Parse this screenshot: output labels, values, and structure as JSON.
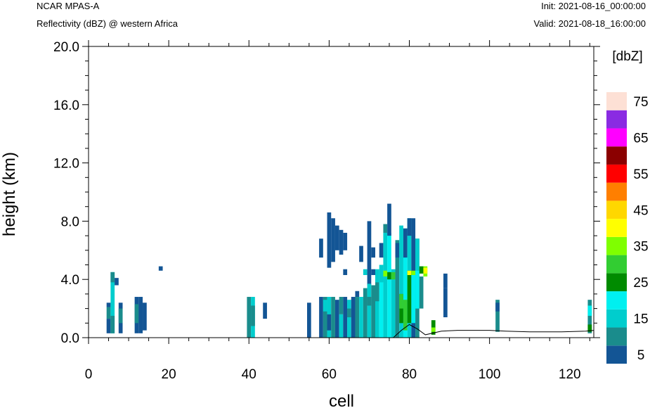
{
  "header": {
    "model": "NCAR MPAS-A",
    "field": "Reflectivity (dBZ) @ western Africa",
    "init": "Init: 2021-08-16_00:00:00",
    "valid": "Valid: 2021-08-18_16:00:00"
  },
  "chart_data": {
    "type": "heatmap",
    "xlabel": "cell",
    "ylabel": "height (km)",
    "xlim": [
      0,
      126
    ],
    "ylim": [
      0,
      20
    ],
    "x_ticks": [
      "0",
      "20",
      "40",
      "60",
      "80",
      "100",
      "120"
    ],
    "y_ticks": [
      "0.0",
      "4.0",
      "8.0",
      "12.0",
      "16.0",
      "20.0"
    ],
    "colorbar": {
      "title": "[dbZ]",
      "labels": [
        "5",
        "15",
        "25",
        "35",
        "45",
        "55",
        "65",
        "75"
      ],
      "colors": [
        "#135595",
        "#1a8c8c",
        "#00cdcd",
        "#00f0f0",
        "#008b00",
        "#32cd32",
        "#7fff00",
        "#ffff00",
        "#ffd700",
        "#ff7f00",
        "#ff0000",
        "#8b0000",
        "#ff00ff",
        "#8a2be2",
        "#fde0d5"
      ]
    },
    "cells": [
      [
        5,
        0.3,
        1.3,
        0
      ],
      [
        5,
        1.3,
        2.1,
        1
      ],
      [
        5,
        2.1,
        2.4,
        0
      ],
      [
        6,
        0.3,
        4.5,
        2
      ],
      [
        6,
        3.8,
        4.5,
        1
      ],
      [
        6,
        0.3,
        1.5,
        1
      ],
      [
        7,
        3.6,
        4.1,
        0
      ],
      [
        8,
        0.3,
        2.4,
        0
      ],
      [
        8,
        1.0,
        2.0,
        1
      ],
      [
        12,
        0.3,
        2.8,
        0
      ],
      [
        12,
        1.0,
        2.3,
        1
      ],
      [
        13,
        0.3,
        2.8,
        0
      ],
      [
        14,
        0.5,
        2.4,
        0
      ],
      [
        18,
        4.6,
        4.9,
        0
      ],
      [
        40,
        0.0,
        2.8,
        1
      ],
      [
        41,
        0.0,
        2.8,
        2
      ],
      [
        41,
        0.8,
        2.2,
        1
      ],
      [
        44,
        1.3,
        2.4,
        0
      ],
      [
        55,
        0.0,
        2.4,
        0
      ],
      [
        58,
        0.0,
        2.8,
        0
      ],
      [
        59,
        0.0,
        2.8,
        1
      ],
      [
        59,
        1.8,
        2.6,
        2
      ],
      [
        58,
        5.5,
        6.8,
        0
      ],
      [
        60,
        4.8,
        8.6,
        0
      ],
      [
        60,
        0.0,
        2.8,
        2
      ],
      [
        60,
        0.5,
        1.6,
        0
      ],
      [
        61,
        5.2,
        8.2,
        0
      ],
      [
        61,
        0.0,
        2.8,
        1
      ],
      [
        62,
        6.0,
        7.7,
        0
      ],
      [
        62,
        0.0,
        2.6,
        0
      ],
      [
        63,
        5.7,
        7.4,
        0
      ],
      [
        63,
        1.6,
        2.8,
        1
      ],
      [
        63,
        0.0,
        1.6,
        2
      ],
      [
        64,
        6.0,
        7.2,
        0
      ],
      [
        64,
        4.3,
        4.7,
        0
      ],
      [
        64,
        0.0,
        2.8,
        0
      ],
      [
        65,
        0.0,
        2.6,
        2
      ],
      [
        65,
        1.4,
        2.0,
        1
      ],
      [
        66,
        0.0,
        2.8,
        0
      ],
      [
        67,
        0.0,
        2.8,
        1
      ],
      [
        67,
        2.8,
        3.2,
        0
      ],
      [
        68,
        0.0,
        2.8,
        2
      ],
      [
        68,
        5.2,
        6.3,
        0
      ],
      [
        69,
        0.0,
        3.4,
        1
      ],
      [
        69,
        4.3,
        4.7,
        2
      ],
      [
        70,
        3.6,
        8.0,
        0
      ],
      [
        70,
        0.0,
        3.7,
        2
      ],
      [
        70,
        2.2,
        2.8,
        1
      ],
      [
        71,
        0.0,
        3.6,
        1
      ],
      [
        71,
        4.3,
        4.7,
        0
      ],
      [
        71,
        5.5,
        6.2,
        0
      ],
      [
        72,
        0.0,
        4.7,
        2
      ],
      [
        72,
        2.5,
        3.8,
        1
      ],
      [
        73,
        0.0,
        4.6,
        3
      ],
      [
        73,
        3.8,
        5.0,
        2
      ],
      [
        73,
        5.5,
        6.5,
        0
      ],
      [
        74,
        0.0,
        7.2,
        2
      ],
      [
        74,
        4.2,
        4.6,
        6
      ],
      [
        74,
        7.2,
        7.8,
        1
      ],
      [
        75,
        0.0,
        7.2,
        3
      ],
      [
        75,
        4.0,
        4.5,
        4
      ],
      [
        75,
        7.0,
        9.2,
        0
      ],
      [
        76,
        0.0,
        4.7,
        2
      ],
      [
        76,
        4.0,
        4.5,
        5
      ],
      [
        77,
        0.0,
        6.7,
        1
      ],
      [
        77,
        5.5,
        6.5,
        0
      ],
      [
        78,
        0.0,
        7.7,
        2
      ],
      [
        78,
        1.0,
        3.0,
        4
      ],
      [
        78,
        2.0,
        3.0,
        5
      ],
      [
        79,
        0.0,
        7.5,
        3
      ],
      [
        79,
        0.5,
        2.6,
        5
      ],
      [
        79,
        5.5,
        7.5,
        0
      ],
      [
        80,
        0.0,
        8.2,
        2
      ],
      [
        80,
        1.0,
        4.6,
        4
      ],
      [
        80,
        4.3,
        4.6,
        7
      ],
      [
        80,
        7.0,
        8.2,
        0
      ],
      [
        81,
        0.0,
        8.2,
        0
      ],
      [
        81,
        1.0,
        4.4,
        3
      ],
      [
        81,
        4.3,
        4.6,
        6
      ],
      [
        82,
        0.0,
        6.8,
        1
      ],
      [
        82,
        2.0,
        6.8,
        2
      ],
      [
        82,
        2.0,
        4.6,
        3
      ],
      [
        83,
        2.0,
        4.2,
        1
      ],
      [
        83,
        4.4,
        4.9,
        4
      ],
      [
        84,
        4.2,
        4.9,
        6
      ],
      [
        84,
        4.4,
        4.8,
        7
      ],
      [
        86,
        0.2,
        1.2,
        4
      ],
      [
        86,
        0.4,
        0.7,
        6
      ],
      [
        89,
        3.4,
        4.4,
        0
      ],
      [
        89,
        1.4,
        3.4,
        0
      ],
      [
        102,
        0.4,
        2.6,
        1
      ],
      [
        102,
        1.8,
        2.4,
        0
      ],
      [
        125,
        0.3,
        2.6,
        1
      ],
      [
        125,
        1.5,
        2.2,
        3
      ],
      [
        125,
        0.4,
        0.9,
        4
      ]
    ],
    "terrain": [
      [
        0,
        0.0
      ],
      [
        76,
        0.0
      ],
      [
        78,
        0.5
      ],
      [
        80,
        0.9
      ],
      [
        82,
        0.6
      ],
      [
        84,
        0.2
      ],
      [
        88,
        0.45
      ],
      [
        92,
        0.5
      ],
      [
        100,
        0.5
      ],
      [
        104,
        0.45
      ],
      [
        110,
        0.4
      ],
      [
        118,
        0.4
      ],
      [
        124,
        0.45
      ],
      [
        126,
        0.5
      ]
    ]
  }
}
